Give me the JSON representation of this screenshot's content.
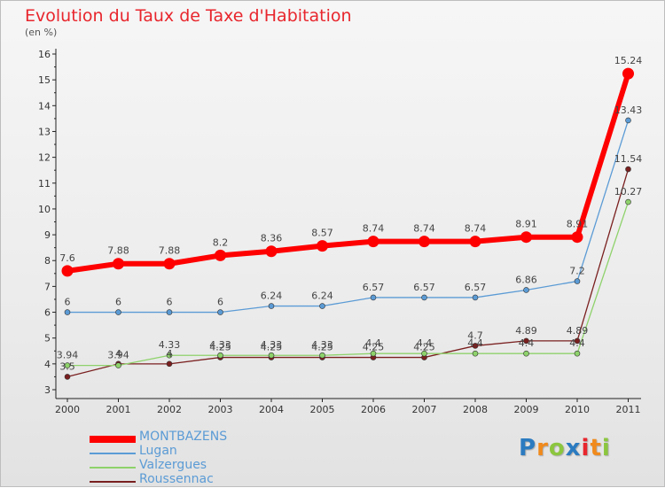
{
  "header": {
    "title": "Evolution du Taux de Taxe d'Habitation",
    "unit": "(en %)"
  },
  "brand": {
    "letters": [
      "P",
      "r",
      "o",
      "x",
      "i",
      "t",
      "i"
    ],
    "colors": [
      "#2b7bc0",
      "#f08a1c",
      "#8cc63f",
      "#2b7bc0",
      "#e8262d",
      "#f08a1c",
      "#8cc63f"
    ]
  },
  "chart_data": {
    "type": "line",
    "title": "Evolution du Taux de Taxe d'Habitation",
    "ylabel": "(en %)",
    "xlabel": "",
    "categories": [
      "2000",
      "2001",
      "2002",
      "2003",
      "2004",
      "2005",
      "2006",
      "2007",
      "2008",
      "2009",
      "2010",
      "2011"
    ],
    "ylim": [
      3,
      16
    ],
    "yticks": [
      "3",
      "4",
      "5",
      "6",
      "7",
      "8",
      "9",
      "10",
      "11",
      "12",
      "13",
      "14",
      "15",
      "16"
    ],
    "grid": false,
    "legend_position": "bottom-left",
    "series": [
      {
        "name": "MONTBAZENS",
        "color": "#ff0000",
        "values": [
          7.6,
          7.88,
          7.88,
          8.2,
          8.36,
          8.57,
          8.74,
          8.74,
          8.74,
          8.91,
          8.91,
          15.24
        ],
        "labels": [
          "7.6",
          "7.88",
          "7.88",
          "8.2",
          "8.36",
          "8.57",
          "8.74",
          "8.74",
          "8.74",
          "8.91",
          "8.91",
          "15.24"
        ]
      },
      {
        "name": "Lugan",
        "color": "#5b9bd5",
        "values": [
          6,
          6,
          6,
          6,
          6.24,
          6.24,
          6.57,
          6.57,
          6.57,
          6.86,
          7.2,
          13.43
        ],
        "labels": [
          "6",
          "6",
          "6",
          "6",
          "6.24",
          "6.24",
          "6.57",
          "6.57",
          "6.57",
          "6.86",
          "7.2",
          "13.43"
        ]
      },
      {
        "name": "Valzergues",
        "color": "#8ed26b",
        "values": [
          3.94,
          3.94,
          4.33,
          4.33,
          4.33,
          4.33,
          4.4,
          4.4,
          4.4,
          4.4,
          4.4,
          10.27
        ],
        "labels": [
          "3.94",
          "3.94",
          "4.33",
          "4.33",
          "4.33",
          "4.33",
          "4.4",
          "4.4",
          "4.4",
          "4.4",
          "4.4",
          "10.27"
        ]
      },
      {
        "name": "Roussennac",
        "color": "#7a1f1f",
        "values": [
          3.5,
          4,
          4,
          4.25,
          4.25,
          4.25,
          4.25,
          4.25,
          4.7,
          4.89,
          4.89,
          11.54
        ],
        "labels": [
          "3.5",
          "4",
          "4",
          "4.25",
          "4.25",
          "4.25",
          "4.25",
          "4.25",
          "4.7",
          "4.89",
          "4.89",
          "11.54"
        ]
      }
    ]
  }
}
